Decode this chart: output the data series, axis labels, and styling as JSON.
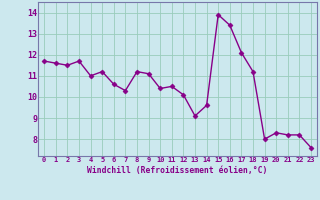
{
  "x": [
    0,
    1,
    2,
    3,
    4,
    5,
    6,
    7,
    8,
    9,
    10,
    11,
    12,
    13,
    14,
    15,
    16,
    17,
    18,
    19,
    20,
    21,
    22,
    23
  ],
  "y": [
    11.7,
    11.6,
    11.5,
    11.7,
    11.0,
    11.2,
    10.6,
    10.3,
    11.2,
    11.1,
    10.4,
    10.5,
    10.1,
    9.1,
    9.6,
    13.9,
    13.4,
    12.1,
    11.2,
    8.0,
    8.3,
    8.2,
    8.2,
    7.6
  ],
  "line_color": "#880088",
  "marker": "D",
  "marker_size": 2.5,
  "line_width": 1.0,
  "bg_color": "#cce8ee",
  "grid_color": "#99ccbb",
  "xlabel": "Windchill (Refroidissement éolien,°C)",
  "xlabel_color": "#880088",
  "tick_color": "#880088",
  "ylim": [
    7.2,
    14.5
  ],
  "xlim": [
    -0.5,
    23.5
  ],
  "yticks": [
    8,
    9,
    10,
    11,
    12,
    13,
    14
  ],
  "xticks": [
    0,
    1,
    2,
    3,
    4,
    5,
    6,
    7,
    8,
    9,
    10,
    11,
    12,
    13,
    14,
    15,
    16,
    17,
    18,
    19,
    20,
    21,
    22,
    23
  ],
  "spine_color": "#7777aa"
}
